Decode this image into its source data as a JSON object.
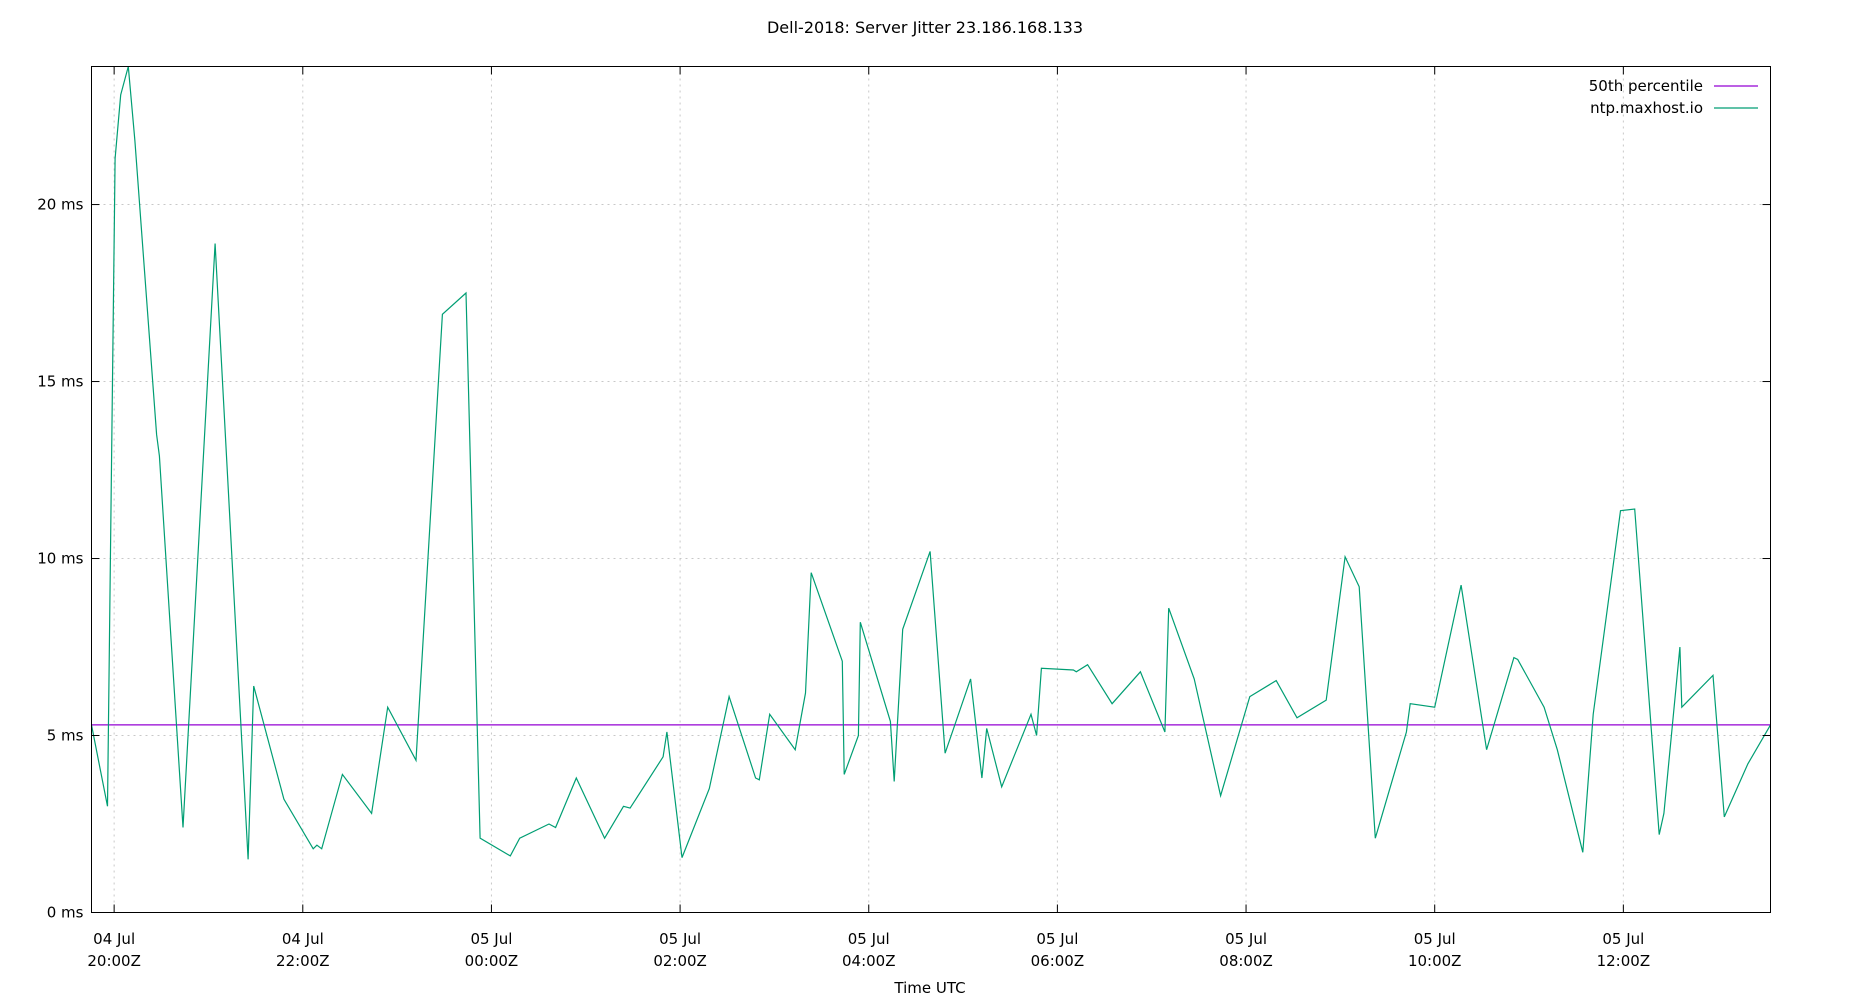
{
  "chart_data": {
    "type": "line",
    "title": "Dell-2018: Server Jitter 23.186.168.133",
    "xlabel": "Time UTC",
    "ylabel": "",
    "x_unit": "hours since 04 Jul 20:00Z",
    "xlim": [
      -0.24,
      17.56
    ],
    "ylim": [
      0,
      23.9
    ],
    "grid": true,
    "legend_position": "top-right",
    "x_ticks": [
      {
        "x": 0,
        "line1": "04 Jul",
        "line2": "20:00Z"
      },
      {
        "x": 2,
        "line1": "04 Jul",
        "line2": "22:00Z"
      },
      {
        "x": 4,
        "line1": "05 Jul",
        "line2": "00:00Z"
      },
      {
        "x": 6,
        "line1": "05 Jul",
        "line2": "02:00Z"
      },
      {
        "x": 8,
        "line1": "05 Jul",
        "line2": "04:00Z"
      },
      {
        "x": 10,
        "line1": "05 Jul",
        "line2": "06:00Z"
      },
      {
        "x": 12,
        "line1": "05 Jul",
        "line2": "08:00Z"
      },
      {
        "x": 14,
        "line1": "05 Jul",
        "line2": "10:00Z"
      },
      {
        "x": 16,
        "line1": "05 Jul",
        "line2": "12:00Z"
      }
    ],
    "y_ticks": [
      {
        "y": 0,
        "label": "0 ms"
      },
      {
        "y": 5,
        "label": "5 ms"
      },
      {
        "y": 10,
        "label": "10 ms"
      },
      {
        "y": 15,
        "label": "15 ms"
      },
      {
        "y": 20,
        "label": "20 ms"
      }
    ],
    "series": [
      {
        "name": "50th percentile",
        "color": "#9400d3",
        "kind": "hline",
        "y": 5.3
      },
      {
        "name": "ntp.maxhost.io",
        "color": "#009e73",
        "kind": "line",
        "points": [
          [
            -0.24,
            5.3
          ],
          [
            -0.07,
            3.0
          ],
          [
            0.01,
            21.3
          ],
          [
            0.07,
            23.1
          ],
          [
            0.15,
            23.9
          ],
          [
            0.22,
            21.8
          ],
          [
            0.45,
            13.5
          ],
          [
            0.48,
            12.9
          ],
          [
            0.73,
            2.4
          ],
          [
            1.07,
            18.9
          ],
          [
            1.42,
            1.5
          ],
          [
            1.48,
            6.4
          ],
          [
            1.8,
            3.2
          ],
          [
            2.11,
            1.8
          ],
          [
            2.15,
            1.9
          ],
          [
            2.2,
            1.8
          ],
          [
            2.42,
            3.9
          ],
          [
            2.73,
            2.8
          ],
          [
            2.9,
            5.8
          ],
          [
            3.2,
            4.3
          ],
          [
            3.48,
            16.9
          ],
          [
            3.73,
            17.5
          ],
          [
            3.88,
            2.1
          ],
          [
            4.2,
            1.6
          ],
          [
            4.3,
            2.1
          ],
          [
            4.61,
            2.5
          ],
          [
            4.68,
            2.4
          ],
          [
            4.9,
            3.8
          ],
          [
            5.2,
            2.1
          ],
          [
            5.4,
            3.0
          ],
          [
            5.47,
            2.95
          ],
          [
            5.82,
            4.4
          ],
          [
            5.86,
            5.1
          ],
          [
            6.02,
            1.55
          ],
          [
            6.31,
            3.5
          ],
          [
            6.52,
            6.1
          ],
          [
            6.8,
            3.8
          ],
          [
            6.84,
            3.75
          ],
          [
            6.95,
            5.6
          ],
          [
            7.22,
            4.6
          ],
          [
            7.33,
            6.2
          ],
          [
            7.39,
            9.6
          ],
          [
            7.72,
            7.1
          ],
          [
            7.74,
            3.9
          ],
          [
            7.89,
            5.0
          ],
          [
            7.91,
            8.2
          ],
          [
            8.23,
            5.4
          ],
          [
            8.27,
            3.7
          ],
          [
            8.36,
            8.0
          ],
          [
            8.65,
            10.2
          ],
          [
            8.81,
            4.5
          ],
          [
            9.08,
            6.6
          ],
          [
            9.2,
            3.8
          ],
          [
            9.25,
            5.2
          ],
          [
            9.41,
            3.55
          ],
          [
            9.72,
            5.6
          ],
          [
            9.78,
            5.0
          ],
          [
            9.83,
            6.9
          ],
          [
            10.17,
            6.85
          ],
          [
            10.2,
            6.8
          ],
          [
            10.32,
            7.0
          ],
          [
            10.58,
            5.9
          ],
          [
            10.88,
            6.8
          ],
          [
            11.14,
            5.1
          ],
          [
            11.18,
            8.6
          ],
          [
            11.45,
            6.6
          ],
          [
            11.73,
            3.3
          ],
          [
            12.04,
            6.1
          ],
          [
            12.32,
            6.55
          ],
          [
            12.54,
            5.5
          ],
          [
            12.85,
            6.0
          ],
          [
            13.05,
            10.05
          ],
          [
            13.2,
            9.2
          ],
          [
            13.37,
            2.1
          ],
          [
            13.7,
            5.1
          ],
          [
            13.74,
            5.9
          ],
          [
            14.0,
            5.8
          ],
          [
            14.28,
            9.25
          ],
          [
            14.55,
            4.6
          ],
          [
            14.84,
            7.2
          ],
          [
            14.88,
            7.15
          ],
          [
            15.16,
            5.8
          ],
          [
            15.3,
            4.6
          ],
          [
            15.57,
            1.7
          ],
          [
            15.68,
            5.6
          ],
          [
            15.97,
            11.35
          ],
          [
            16.12,
            11.4
          ],
          [
            16.38,
            2.2
          ],
          [
            16.43,
            2.8
          ],
          [
            16.6,
            7.5
          ],
          [
            16.62,
            5.8
          ],
          [
            16.95,
            6.7
          ],
          [
            17.07,
            2.7
          ],
          [
            17.32,
            4.2
          ],
          [
            17.56,
            5.3
          ]
        ]
      }
    ]
  }
}
